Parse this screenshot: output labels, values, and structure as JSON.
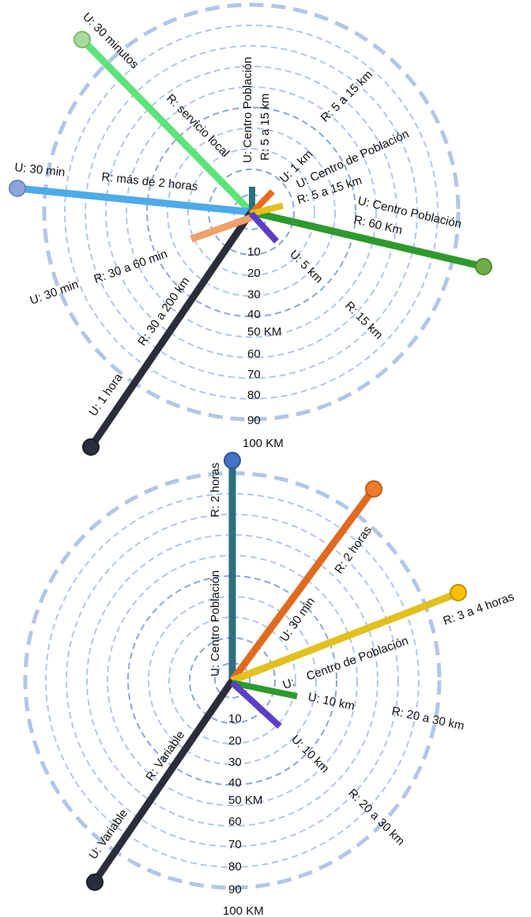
{
  "diagrams": [
    {
      "id": "top",
      "scale_labels": [
        "10",
        "20",
        "30",
        "40",
        "50 KM",
        "60",
        "70",
        "80",
        "90",
        "100 KM"
      ],
      "spokes": [
        {
          "color": "#5ee37c",
          "end_color": "#a9d99a"
        },
        {
          "color": "#4dabe8",
          "end_color": "#8fa5dc"
        },
        {
          "color": "#2e9a2e",
          "end_color": "#6fae47"
        },
        {
          "color": "#2b2d3a",
          "end_color": "#2b2d3a"
        },
        {
          "color": "#f0a06a"
        },
        {
          "color": "#2b7080"
        },
        {
          "color": "#ea6b1f"
        },
        {
          "color": "#e6bf1e"
        },
        {
          "color": "#5b3fc4"
        }
      ],
      "labels": [
        "U: 30 minutos",
        "R: servicio local",
        "U: 30 min",
        "R: más de 2 horas",
        "U: Centro Población",
        "R: 5 a 15 km",
        "R: 5 a 15 km",
        "U: 1 km",
        "U: Centro de Población",
        "R: 5 a 15 km",
        "U: Centro Población",
        "R: 60 Km",
        "U: 30 min",
        "R: 30 a 60 min",
        "R: 30 a 200 km",
        "U: 1 hora",
        "U: 5 km",
        "R: 15 km"
      ]
    },
    {
      "id": "bottom",
      "scale_labels": [
        "10",
        "20",
        "30",
        "40",
        "50 KM",
        "60",
        "70",
        "80",
        "90",
        "100 KM"
      ],
      "spokes": [
        {
          "color": "#2b7080",
          "end_color": "#4472c4"
        },
        {
          "color": "#e06a1f",
          "end_color": "#ed7d31"
        },
        {
          "color": "#e2c01e",
          "end_color": "#ffc000"
        },
        {
          "color": "#2b2d3a",
          "end_color": "#2b2d3a"
        },
        {
          "color": "#2e9a2e"
        },
        {
          "color": "#5b3fc4"
        }
      ],
      "labels": [
        "R: 2 horas",
        "U: Centro Población",
        "R: 2 horas",
        "U: 30 min",
        "R: 3 a 4 horas",
        "U:",
        "Centro de Población",
        "U: 10 km",
        "R: 20 a 30 km",
        "R: Variable",
        "U: Variable",
        "U: 10 km",
        "R: 20 a 30 km"
      ]
    }
  ]
}
